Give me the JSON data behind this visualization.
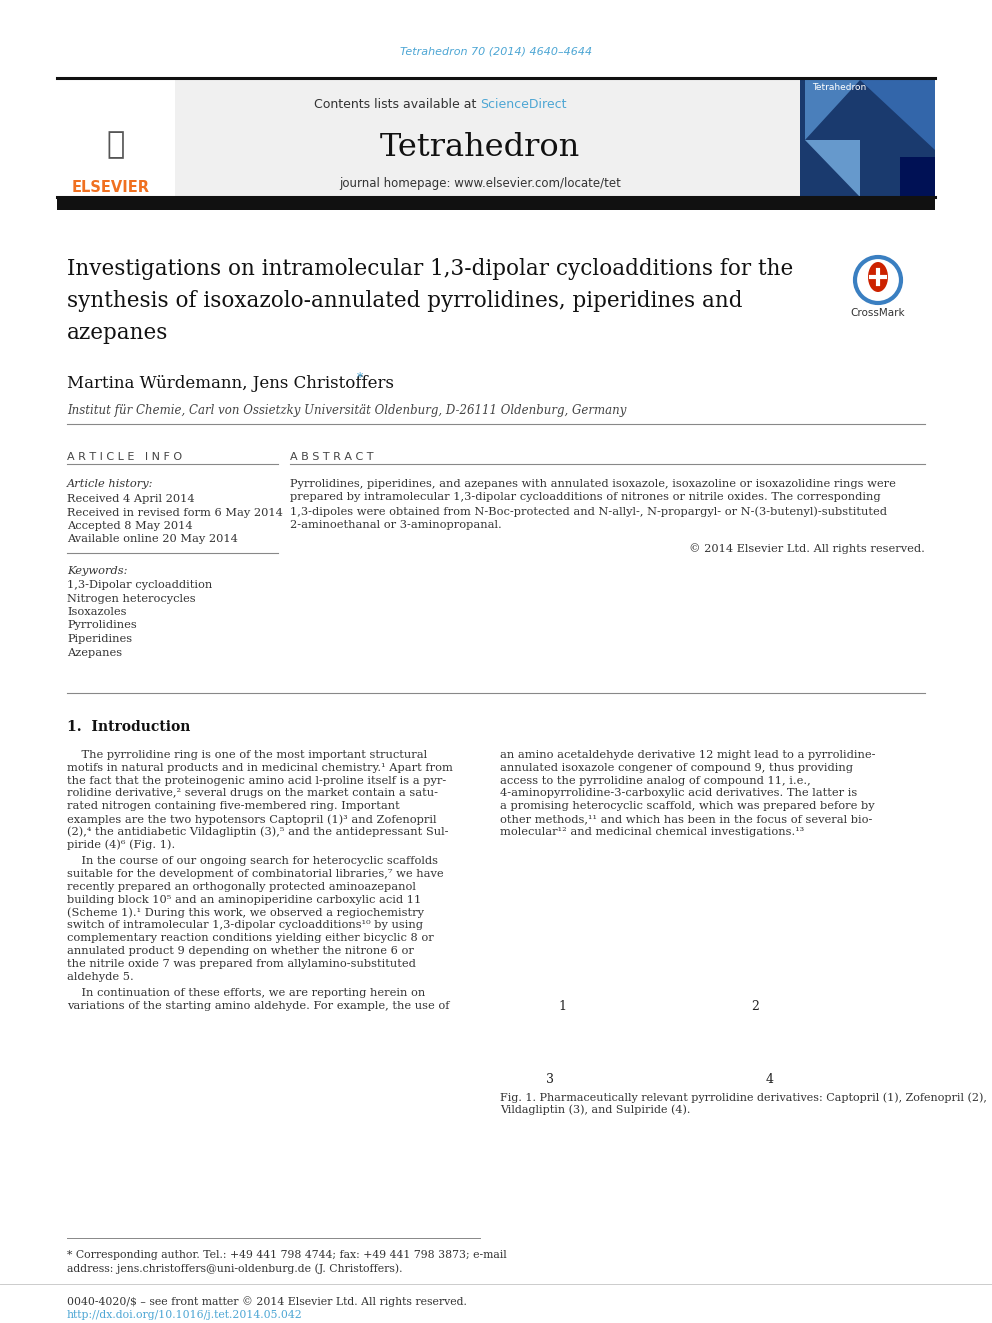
{
  "page_bg": "#ffffff",
  "journal_ref_color": "#4da6d4",
  "journal_ref": "Tetrahedron 70 (2014) 4640–4644",
  "header_bg": "#f0f0f0",
  "contents_text": "Contents lists available at ",
  "sciencedirect_text": "ScienceDirect",
  "sciencedirect_color": "#4da6d4",
  "journal_title": "Tetrahedron",
  "journal_homepage": "journal homepage: www.elsevier.com/locate/tet",
  "header_border_color": "#222222",
  "elsevier_color": "#f07020",
  "article_title_line1": "Investigations on intramolecular 1,3-dipolar cycloadditions for the",
  "article_title_line2": "synthesis of isoxazolo-annulated pyrrolidines, piperidines and",
  "article_title_line3": "azepanes",
  "authors": "Martina Würdemann, Jens Christoffers",
  "author_star": " *",
  "affiliation": "Institut für Chemie, Carl von Ossietzky Universität Oldenburg, D-26111 Oldenburg, Germany",
  "article_info_header": "A R T I C L E   I N F O",
  "abstract_header": "A B S T R A C T",
  "article_history_label": "Article history:",
  "received": "Received 4 April 2014",
  "received_revised": "Received in revised form 6 May 2014",
  "accepted": "Accepted 8 May 2014",
  "available": "Available online 20 May 2014",
  "keywords_label": "Keywords:",
  "keywords": [
    "1,3-Dipolar cycloaddition",
    "Nitrogen heterocycles",
    "Isoxazoles",
    "Pyrrolidines",
    "Piperidines",
    "Azepanes"
  ],
  "abstract_text": "Pyrrolidines, piperidines, and azepanes with annulated isoxazole, isoxazoline or isoxazolidine rings were\nprepared by intramolecular 1,3-dipolar cycloadditions of nitrones or nitrile oxides. The corresponding\n1,3-dipoles were obtained from N-Boc-protected and N-allyl-, N-propargyl- or N-(3-butenyl)-substituted\n2-aminoethanal or 3-aminopropanal.",
  "copyright": "© 2014 Elsevier Ltd. All rights reserved.",
  "section1_title": "1.  Introduction",
  "intro_para1_lines": [
    "    The pyrrolidine ring is one of the most important structural",
    "motifs in natural products and in medicinal chemistry.¹ Apart from",
    "the fact that the proteinogenic amino acid l-proline itself is a pyr-",
    "rolidine derivative,² several drugs on the market contain a satu-",
    "rated nitrogen containing five-membered ring. Important",
    "examples are the two hypotensors Captopril (1)³ and Zofenopril",
    "(2),⁴ the antidiabetic Vildagliptin (3),⁵ and the antidepressant Sul-",
    "piride (4)⁶ (Fig. 1)."
  ],
  "intro_para2_lines": [
    "    In the course of our ongoing search for heterocyclic scaffolds",
    "suitable for the development of combinatorial libraries,⁷ we have",
    "recently prepared an orthogonally protected aminoazepanol",
    "building block 10⁵ and an aminopiperidine carboxylic acid 11",
    "(Scheme 1).¹ During this work, we observed a regiochemistry",
    "switch of intramolecular 1,3-dipolar cycloadditions¹⁰ by using",
    "complementary reaction conditions yielding either bicyclic 8 or",
    "annulated product 9 depending on whether the nitrone 6 or",
    "the nitrile oxide 7 was prepared from allylamino-substituted",
    "aldehyde 5."
  ],
  "intro_para3_lines": [
    "    In continuation of these efforts, we are reporting herein on",
    "variations of the starting amino aldehyde. For example, the use of"
  ],
  "fig1_caption_lines": [
    "Fig. 1. Pharmaceutically relevant pyrrolidine derivatives: Captopril (1), Zofenopril (2),",
    "Vildagliptin (3), and Sulpiride (4)."
  ],
  "right_col_lines": [
    "an amino acetaldehyde derivative 12 might lead to a pyrrolidine-",
    "annulated isoxazole congener of compound 9, thus providing",
    "access to the pyrrolidine analog of compound 11, i.e.,",
    "4-aminopyrrolidine-3-carboxylic acid derivatives. The latter is",
    "a promising heterocyclic scaffold, which was prepared before by",
    "other methods,¹¹ and which has been in the focus of several bio-",
    "molecular¹² and medicinal chemical investigations.¹³"
  ],
  "footnote_line1": "* Corresponding author. Tel.: +49 441 798 4744; fax: +49 441 798 3873; e-mail",
  "footnote_line2": "address: jens.christoffers@uni-oldenburg.de (J. Christoffers).",
  "footer_line1": "0040-4020/$ – see front matter © 2014 Elsevier Ltd. All rights reserved.",
  "footer_line2": "http://dx.doi.org/10.1016/j.tet.2014.05.042",
  "footer_link_color": "#4da6d4",
  "text_color": "#000000",
  "small_text_color": "#222222",
  "separator_color": "#888888"
}
